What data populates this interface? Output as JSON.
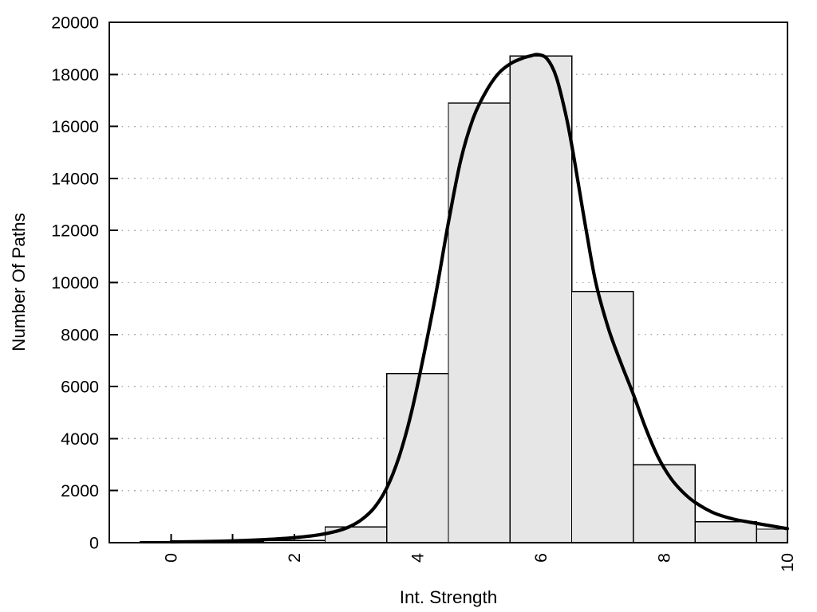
{
  "chart_data": {
    "type": "bar",
    "subtype": "histogram_with_density_curve",
    "title": "",
    "xlabel": "Int. Strength",
    "ylabel": "Number Of Paths",
    "xlim": [
      -1,
      10
    ],
    "ylim": [
      0,
      20000
    ],
    "x_tick_positions": [
      0,
      1,
      2,
      3,
      4,
      5,
      6,
      7,
      8,
      9,
      10
    ],
    "x_tick_labels": [
      "0",
      "",
      "2",
      "",
      "4",
      "",
      "6",
      "",
      "8",
      "",
      "10"
    ],
    "x_tick_label_rotation": -90,
    "y_tick_positions": [
      0,
      2000,
      4000,
      6000,
      8000,
      10000,
      12000,
      14000,
      16000,
      18000,
      20000
    ],
    "y_tick_labels": [
      "0",
      "2000",
      "4000",
      "6000",
      "8000",
      "10000",
      "12000",
      "14000",
      "16000",
      "18000",
      "20000"
    ],
    "grid": "horizontal-dotted",
    "legend": "none",
    "colors": {
      "bar_fill": "#e6e6e6",
      "bar_edge": "#000000",
      "curve": "#000000",
      "frame": "#000000",
      "grid": "#ababab",
      "text": "#000000"
    },
    "bars": {
      "bin_width": 1,
      "centers": [
        0,
        1,
        2,
        3,
        4,
        5,
        6,
        7,
        8,
        9,
        10
      ],
      "values": [
        40,
        50,
        80,
        610,
        6500,
        16900,
        18700,
        9650,
        3000,
        800,
        520
      ]
    },
    "curve": {
      "name": "smoothed density of Number Of Paths",
      "points": [
        [
          0,
          30
        ],
        [
          0.3,
          35
        ],
        [
          0.6,
          45
        ],
        [
          0.9,
          60
        ],
        [
          1.2,
          85
        ],
        [
          1.5,
          115
        ],
        [
          1.8,
          155
        ],
        [
          2.1,
          215
        ],
        [
          2.4,
          300
        ],
        [
          2.7,
          450
        ],
        [
          2.9,
          620
        ],
        [
          3.1,
          900
        ],
        [
          3.3,
          1350
        ],
        [
          3.5,
          2100
        ],
        [
          3.7,
          3300
        ],
        [
          3.9,
          5000
        ],
        [
          4.1,
          7200
        ],
        [
          4.3,
          9600
        ],
        [
          4.5,
          12300
        ],
        [
          4.7,
          14700
        ],
        [
          4.9,
          16300
        ],
        [
          5.1,
          17300
        ],
        [
          5.3,
          18000
        ],
        [
          5.5,
          18400
        ],
        [
          5.7,
          18620
        ],
        [
          5.85,
          18720
        ],
        [
          5.95,
          18760
        ],
        [
          6.1,
          18600
        ],
        [
          6.25,
          17900
        ],
        [
          6.4,
          16500
        ],
        [
          6.5,
          15300
        ],
        [
          6.6,
          13900
        ],
        [
          6.75,
          11800
        ],
        [
          6.9,
          9900
        ],
        [
          7.1,
          8200
        ],
        [
          7.3,
          6900
        ],
        [
          7.5,
          5700
        ],
        [
          7.7,
          4400
        ],
        [
          7.9,
          3300
        ],
        [
          8.1,
          2500
        ],
        [
          8.3,
          1950
        ],
        [
          8.5,
          1550
        ],
        [
          8.8,
          1150
        ],
        [
          9.1,
          920
        ],
        [
          9.4,
          780
        ],
        [
          9.7,
          660
        ],
        [
          10,
          540
        ]
      ]
    }
  }
}
